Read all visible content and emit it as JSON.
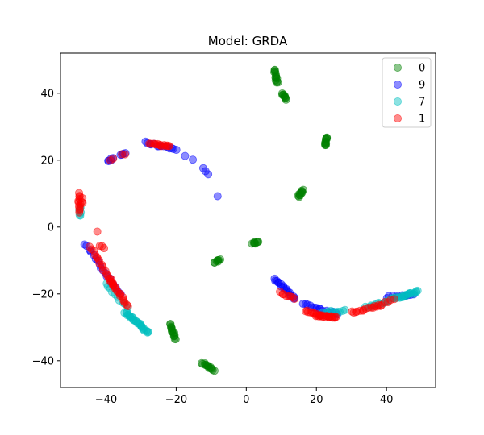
{
  "chart_data": {
    "type": "scatter",
    "title": "Model: GRDA",
    "xlabel": "",
    "ylabel": "",
    "xlim": [
      -53,
      54
    ],
    "ylim": [
      -48,
      52
    ],
    "xticks": [
      -40,
      -20,
      0,
      20,
      40
    ],
    "yticks": [
      40,
      20,
      0,
      -20,
      -40
    ],
    "xtick_labels": [
      "−40",
      "−20",
      "0",
      "20",
      "40"
    ],
    "ytick_labels": [
      "40",
      "20",
      "0",
      "−20",
      "−40"
    ],
    "grid": false,
    "legend_position": "top-right",
    "marker_alpha": 0.45,
    "series": [
      {
        "name": "0",
        "color": "#008000",
        "clusters": [
          {
            "x0": 8.0,
            "y0": 47.0,
            "x1": 8.8,
            "y1": 43.0,
            "n": 14
          },
          {
            "x0": 10.3,
            "y0": 40.0,
            "x1": 11.2,
            "y1": 38.3,
            "n": 10
          },
          {
            "x0": 22.9,
            "y0": 27.0,
            "x1": 22.5,
            "y1": 24.3,
            "n": 12
          },
          {
            "x0": 16.2,
            "y0": 11.0,
            "x1": 14.8,
            "y1": 9.0,
            "n": 12
          },
          {
            "x0": 1.8,
            "y0": -5.0,
            "x1": 3.6,
            "y1": -4.6,
            "n": 8
          },
          {
            "x0": -9.0,
            "y0": -10.6,
            "x1": -7.5,
            "y1": -9.8,
            "n": 8
          },
          {
            "x0": -21.8,
            "y0": -29.0,
            "x1": -20.2,
            "y1": -33.5,
            "n": 16
          },
          {
            "x0": -12.5,
            "y0": -40.5,
            "x1": -9.2,
            "y1": -43.0,
            "n": 14
          }
        ]
      },
      {
        "name": "9",
        "color": "#0000ff",
        "clusters": [
          {
            "x0": -39.5,
            "y0": 19.7,
            "x1": -38.0,
            "y1": 20.7,
            "n": 5
          },
          {
            "x0": -36.0,
            "y0": 21.5,
            "x1": -34.5,
            "y1": 22.2,
            "n": 4
          },
          {
            "x0": -29.0,
            "y0": 25.3,
            "x1": -20.0,
            "y1": 23.0,
            "n": 14
          },
          {
            "x0": -17.5,
            "y0": 21.5,
            "x1": -15.5,
            "y1": 20.0,
            "n": 2
          },
          {
            "x0": -12.0,
            "y0": 17.5,
            "x1": -11.0,
            "y1": 15.5,
            "n": 3
          },
          {
            "x0": -8.2,
            "y0": 9.0,
            "x1": -8.2,
            "y1": 9.0,
            "n": 1
          },
          {
            "x0": -46.0,
            "y0": -5.0,
            "x1": -36.0,
            "y1": -20.0,
            "n": 18
          },
          {
            "x0": 8.0,
            "y0": -15.5,
            "x1": 14.0,
            "y1": -21.5,
            "n": 18
          },
          {
            "x0": 16.0,
            "y0": -23.0,
            "x1": 26.0,
            "y1": -26.0,
            "n": 16
          },
          {
            "x0": 40.0,
            "y0": -21.0,
            "x1": 48.0,
            "y1": -20.0,
            "n": 10
          }
        ]
      },
      {
        "name": "7",
        "color": "#00bfbf",
        "clusters": [
          {
            "x0": -47.5,
            "y0": 6.0,
            "x1": -47.2,
            "y1": 3.3,
            "n": 6
          },
          {
            "x0": -40.0,
            "y0": -17.0,
            "x1": -34.0,
            "y1": -24.0,
            "n": 10
          },
          {
            "x0": -34.5,
            "y0": -25.5,
            "x1": -28.0,
            "y1": -31.5,
            "n": 30
          },
          {
            "x0": 22.0,
            "y0": -25.5,
            "x1": 28.0,
            "y1": -25.0,
            "n": 10
          },
          {
            "x0": 34.0,
            "y0": -24.0,
            "x1": 42.0,
            "y1": -21.5,
            "n": 14
          },
          {
            "x0": 42.0,
            "y0": -21.5,
            "x1": 49.0,
            "y1": -19.3,
            "n": 20
          }
        ]
      },
      {
        "name": "1",
        "color": "#ff0000",
        "clusters": [
          {
            "x0": -47.8,
            "y0": 10.0,
            "x1": -47.5,
            "y1": 4.5,
            "n": 12
          },
          {
            "x0": -47.0,
            "y0": 8.5,
            "x1": -46.8,
            "y1": 7.0,
            "n": 3
          },
          {
            "x0": -42.5,
            "y0": -1.5,
            "x1": -42.5,
            "y1": -1.5,
            "n": 1
          },
          {
            "x0": -41.5,
            "y0": -5.5,
            "x1": -40.8,
            "y1": -6.5,
            "n": 3
          },
          {
            "x0": -44.5,
            "y0": -6.0,
            "x1": -38.0,
            "y1": -17.5,
            "n": 18
          },
          {
            "x0": -39.0,
            "y0": -15.5,
            "x1": -34.0,
            "y1": -23.5,
            "n": 18
          },
          {
            "x0": -39.0,
            "y0": 19.8,
            "x1": -38.0,
            "y1": 20.3,
            "n": 2
          },
          {
            "x0": -35.5,
            "y0": 21.5,
            "x1": -34.8,
            "y1": 21.8,
            "n": 2
          },
          {
            "x0": -27.5,
            "y0": 25.2,
            "x1": -22.0,
            "y1": 24.0,
            "n": 14
          },
          {
            "x0": 9.5,
            "y0": -19.5,
            "x1": 14.0,
            "y1": -21.5,
            "n": 8
          },
          {
            "x0": 17.0,
            "y0": -25.0,
            "x1": 20.0,
            "y1": -26.0,
            "n": 8
          },
          {
            "x0": 20.0,
            "y0": -26.5,
            "x1": 25.5,
            "y1": -27.0,
            "n": 22
          },
          {
            "x0": 30.0,
            "y0": -25.5,
            "x1": 38.0,
            "y1": -23.5,
            "n": 14
          },
          {
            "x0": 38.0,
            "y0": -23.5,
            "x1": 42.0,
            "y1": -21.5,
            "n": 6
          }
        ]
      }
    ]
  }
}
